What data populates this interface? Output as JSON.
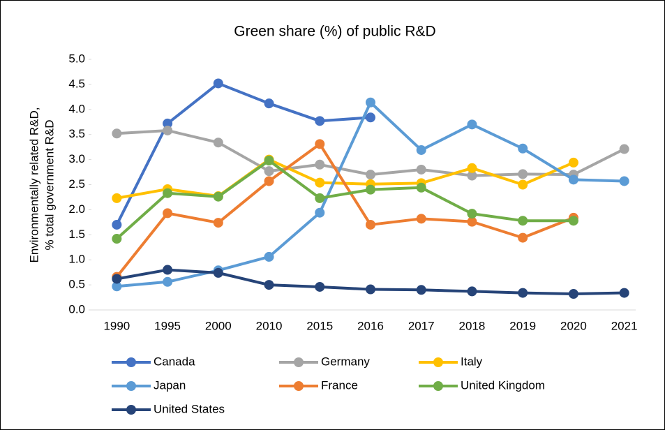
{
  "chart_data": {
    "type": "line",
    "title": "Green share (%) of public R&D",
    "ylabel": [
      "Environmentally related R&D,",
      "% total government R&D"
    ],
    "categories": [
      "1990",
      "1995",
      "2000",
      "2010",
      "2015",
      "2016",
      "2017",
      "2018",
      "2019",
      "2020",
      "2021"
    ],
    "series": [
      {
        "name": "Canada",
        "color": "#4472c4",
        "values": [
          1.7,
          3.72,
          4.52,
          4.12,
          3.77,
          3.84,
          null,
          null,
          null,
          null,
          null
        ]
      },
      {
        "name": "Germany",
        "color": "#a5a5a5",
        "values": [
          3.52,
          3.58,
          3.34,
          2.77,
          2.9,
          2.7,
          2.8,
          2.68,
          2.71,
          2.7,
          3.21
        ]
      },
      {
        "name": "Italy",
        "color": "#ffc000",
        "values": [
          2.23,
          2.41,
          2.27,
          3.0,
          2.54,
          2.51,
          2.53,
          2.83,
          2.5,
          2.94,
          null
        ]
      },
      {
        "name": "Japan",
        "color": "#5b9bd5",
        "values": [
          0.47,
          0.56,
          0.79,
          1.06,
          1.94,
          4.14,
          3.19,
          3.7,
          3.22,
          2.6,
          2.57
        ]
      },
      {
        "name": "France",
        "color": "#ed7d31",
        "values": [
          0.66,
          1.93,
          1.74,
          2.57,
          3.31,
          1.7,
          1.82,
          1.76,
          1.44,
          1.84,
          null
        ]
      },
      {
        "name": "United Kingdom",
        "color": "#70ad47",
        "values": [
          1.42,
          2.33,
          2.26,
          2.98,
          2.23,
          2.4,
          2.44,
          1.92,
          1.78,
          1.78,
          null
        ]
      },
      {
        "name": "United States",
        "color": "#264478",
        "values": [
          0.62,
          0.8,
          0.74,
          0.5,
          0.46,
          0.41,
          0.4,
          0.37,
          0.34,
          0.32,
          0.34
        ]
      }
    ],
    "ylim": [
      0,
      5
    ],
    "yticks": [
      {
        "value": 0,
        "label": "0.0"
      },
      {
        "value": 0.5,
        "label": "0.5"
      },
      {
        "value": 1,
        "label": "1.0"
      },
      {
        "value": 1.5,
        "label": "1.5"
      },
      {
        "value": 2,
        "label": "2.0"
      },
      {
        "value": 2.5,
        "label": "2.5"
      },
      {
        "value": 3,
        "label": "3.0"
      },
      {
        "value": 3.5,
        "label": "3.5"
      },
      {
        "value": 4,
        "label": "4.0"
      },
      {
        "value": 4.5,
        "label": "4.5"
      },
      {
        "value": 5,
        "label": "5.0"
      }
    ],
    "legend": "bottom"
  }
}
